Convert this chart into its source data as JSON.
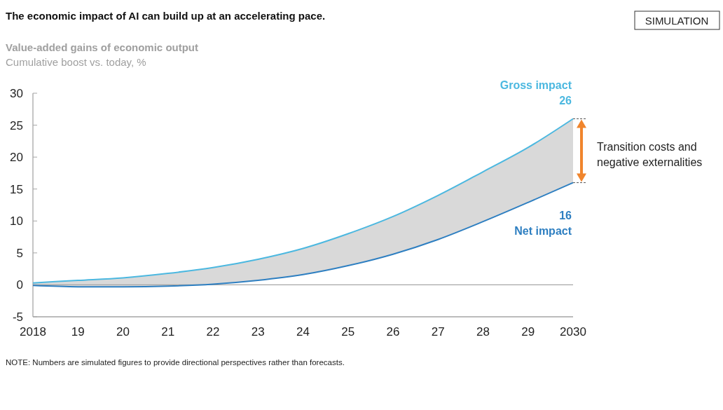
{
  "chart_data": {
    "type": "line",
    "title": "The economic impact of AI can build up at an accelerating pace.",
    "subtitle": "Value-added gains of economic output",
    "ylabel": "Cumulative boost vs. today, %",
    "categories": [
      "2018",
      "19",
      "20",
      "21",
      "22",
      "23",
      "24",
      "25",
      "26",
      "27",
      "28",
      "29",
      "2030"
    ],
    "series": [
      {
        "name": "Gross impact",
        "color": "#4cb8e0",
        "values": [
          0.3,
          0.7,
          1.1,
          1.8,
          2.7,
          4.0,
          5.7,
          8.0,
          10.7,
          14.0,
          17.7,
          21.5,
          26
        ],
        "value_labels": [
          null,
          null,
          null,
          null,
          null,
          null,
          null,
          null,
          null,
          null,
          null,
          null,
          "26"
        ],
        "lower": [
          -0.1,
          -0.3,
          -0.3,
          -0.2,
          0.1,
          0.7,
          1.6,
          3.0,
          4.8,
          7.1,
          9.9,
          12.9,
          16
        ],
        "upper": [
          0.3,
          0.7,
          1.1,
          1.8,
          2.7,
          4.0,
          5.7,
          8.0,
          10.7,
          14.0,
          17.7,
          21.5,
          26
        ]
      },
      {
        "name": "Net impact",
        "color": "#2e7fc1",
        "values": [
          -0.1,
          -0.3,
          -0.3,
          -0.2,
          0.1,
          0.7,
          1.6,
          3.0,
          4.8,
          7.1,
          9.9,
          12.9,
          16
        ],
        "value_labels": [
          null,
          null,
          null,
          null,
          null,
          null,
          null,
          null,
          null,
          null,
          null,
          null,
          "16"
        ]
      }
    ],
    "ylim": [
      -5,
      30
    ],
    "yticks": [
      -5,
      0,
      5,
      10,
      15,
      20,
      25,
      30
    ],
    "grid": false,
    "marker": "none",
    "line_style": "solid",
    "ref_lines": [
      {
        "axis": "y",
        "value": 0,
        "color": "#a6a6a6"
      }
    ],
    "annotations": [
      "SIMULATION",
      {
        "text": "Transition costs and negative externalities",
        "x": "2030",
        "y": 21
      },
      "NOTE: Numbers are simulated figures to provide directional perspectives rather than forecasts."
    ]
  }
}
